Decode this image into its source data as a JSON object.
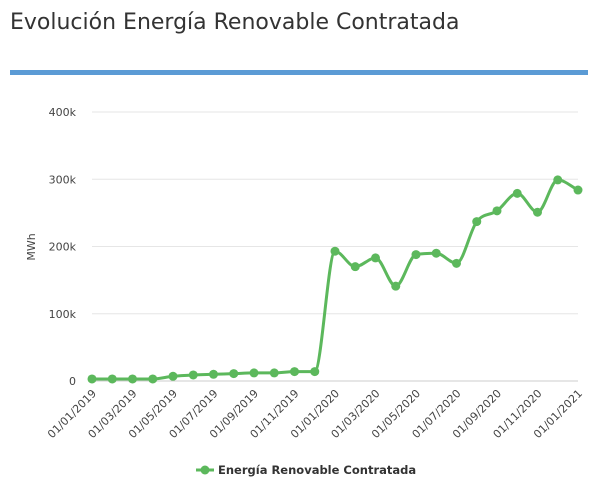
{
  "page": {
    "title": "Evolución Energía Renovable Contratada",
    "title_rule_color": "#5b9bd5"
  },
  "chart_data": {
    "type": "line",
    "title": "",
    "xlabel": "",
    "ylabel": "MWh",
    "ylim": [
      0,
      400000
    ],
    "y_ticks": [
      0,
      100000,
      200000,
      300000,
      400000
    ],
    "y_tick_labels": [
      "0",
      "100k",
      "200k",
      "300k",
      "400k"
    ],
    "x_tick_labels": [
      "01/01/2019",
      "01/03/2019",
      "01/05/2019",
      "01/07/2019",
      "01/09/2019",
      "01/11/2019",
      "01/01/2020",
      "01/03/2020",
      "01/05/2020",
      "01/07/2020",
      "01/09/2020",
      "01/11/2020",
      "01/01/2021"
    ],
    "x": [
      "01/01/2019",
      "01/02/2019",
      "01/03/2019",
      "01/04/2019",
      "01/05/2019",
      "01/06/2019",
      "01/07/2019",
      "01/08/2019",
      "01/09/2019",
      "01/10/2019",
      "01/11/2019",
      "01/12/2019",
      "01/01/2020",
      "01/02/2020",
      "01/03/2020",
      "01/04/2020",
      "01/05/2020",
      "01/06/2020",
      "01/07/2020",
      "01/08/2020",
      "01/09/2020",
      "01/10/2020",
      "01/11/2020",
      "01/12/2020",
      "01/01/2021"
    ],
    "series": [
      {
        "name": "Energía Renovable Contratada",
        "color": "#5cb85c",
        "values": [
          3000,
          3000,
          3000,
          3000,
          7000,
          9000,
          10000,
          11000,
          12000,
          12000,
          14000,
          14000,
          193000,
          170000,
          183000,
          141000,
          188000,
          190000,
          175000,
          237000,
          253000,
          279000,
          251000,
          299000,
          284000
        ]
      }
    ],
    "grid": true,
    "legend_position": "bottom-center"
  }
}
